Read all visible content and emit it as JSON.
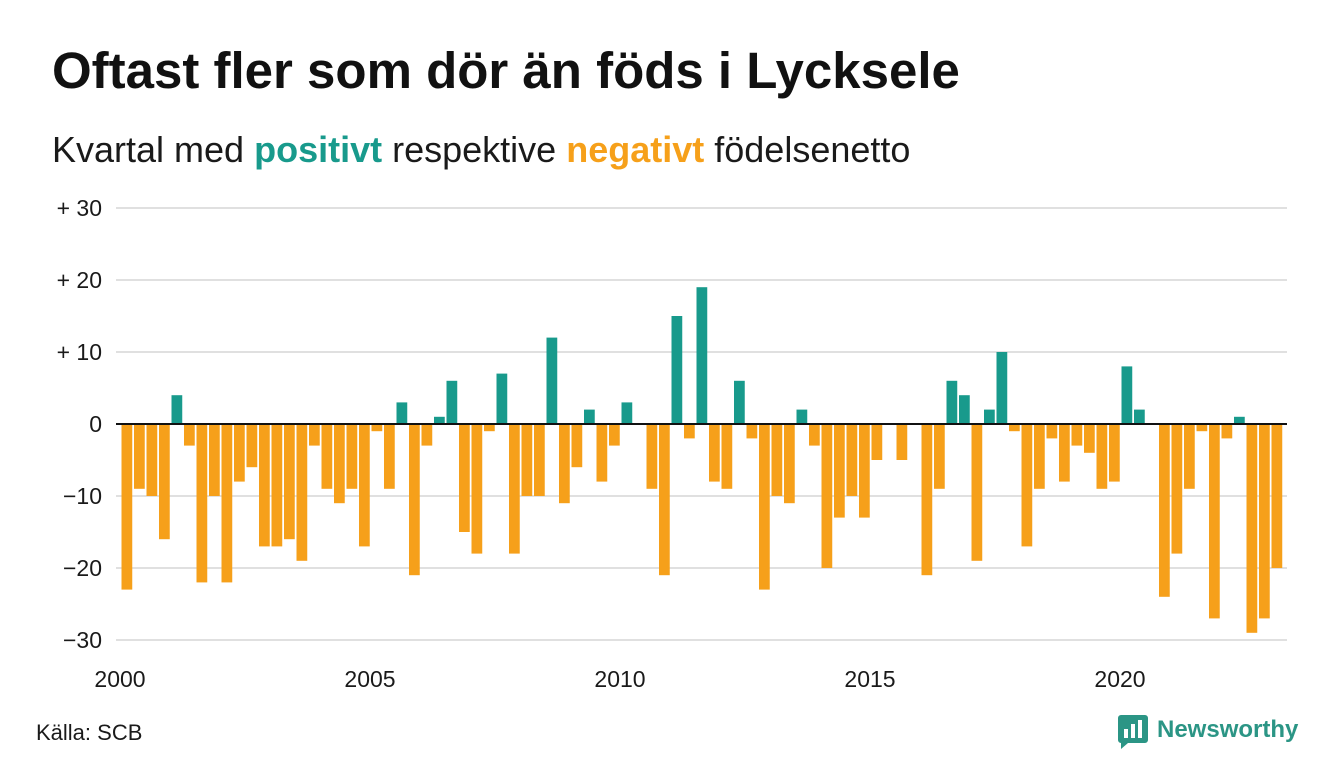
{
  "chart_data": {
    "type": "bar",
    "title": "Oftast fler som dör än föds i Lycksele",
    "subtitle": {
      "lead": "Kvartal med",
      "positive": "positivt",
      "middle": "respektive",
      "negative": "negativt",
      "tail": "födelsenetto"
    },
    "xlabel": "",
    "ylabel": "",
    "x": [
      2000,
      2000.25,
      2000.5,
      2000.75,
      2001,
      2001.25,
      2001.5,
      2001.75,
      2002,
      2002.25,
      2002.5,
      2002.75,
      2003,
      2003.25,
      2003.5,
      2003.75,
      2004,
      2004.25,
      2004.5,
      2004.75,
      2005,
      2005.25,
      2005.5,
      2005.75,
      2006,
      2006.25,
      2006.5,
      2006.75,
      2007,
      2007.25,
      2007.5,
      2007.75,
      2008,
      2008.25,
      2008.5,
      2008.75,
      2009,
      2009.25,
      2009.5,
      2009.75,
      2010,
      2010.25,
      2010.5,
      2010.75,
      2011,
      2011.25,
      2011.5,
      2011.75,
      2012,
      2012.25,
      2012.5,
      2012.75,
      2013,
      2013.25,
      2013.5,
      2013.75,
      2014,
      2014.25,
      2014.5,
      2014.75,
      2015,
      2015.25,
      2015.5,
      2015.75,
      2016,
      2016.25,
      2016.5,
      2016.75,
      2017,
      2017.25,
      2017.5,
      2017.75,
      2018,
      2018.25,
      2018.5,
      2018.75,
      2019,
      2019.25,
      2019.5,
      2019.75,
      2020,
      2020.25,
      2020.5,
      2020.75,
      2021,
      2021.25,
      2021.5,
      2021.75,
      2022,
      2022.25,
      2022.5,
      2022.75,
      2023
    ],
    "values": [
      -23,
      -9,
      -10,
      -16,
      4,
      -3,
      -22,
      -10,
      -22,
      -8,
      -6,
      -17,
      -17,
      -16,
      -19,
      -3,
      -9,
      -11,
      -9,
      -17,
      -1,
      -9,
      3,
      -21,
      -3,
      1,
      6,
      -15,
      -18,
      -1,
      7,
      -18,
      -10,
      -10,
      12,
      -11,
      -6,
      2,
      -8,
      -3,
      3,
      0,
      -9,
      -21,
      15,
      -2,
      19,
      -8,
      -9,
      6,
      -2,
      -23,
      -10,
      -11,
      2,
      -3,
      -20,
      -13,
      -10,
      -13,
      -5,
      0,
      -5,
      0,
      -21,
      -9,
      6,
      4,
      -19,
      2,
      10,
      -1,
      -17,
      -9,
      -2,
      -8,
      -3,
      -4,
      -9,
      -8,
      8,
      2,
      0,
      -24,
      -18,
      -9,
      -1,
      -27,
      -2,
      1,
      -29,
      -27,
      -20
    ],
    "xlim": [
      2000,
      2023.25
    ],
    "ylim": [
      -30,
      30
    ],
    "x_ticks": [
      {
        "value": 2000,
        "label": "2000"
      },
      {
        "value": 2005,
        "label": "2005"
      },
      {
        "value": 2010,
        "label": "2010"
      },
      {
        "value": 2015,
        "label": "2015"
      },
      {
        "value": 2020,
        "label": "2020"
      }
    ],
    "y_ticks": [
      {
        "value": 30,
        "label": "+ 30"
      },
      {
        "value": 20,
        "label": "+ 20"
      },
      {
        "value": 10,
        "label": "+ 10"
      },
      {
        "value": 0,
        "label": "0"
      },
      {
        "value": -10,
        "label": "−10"
      },
      {
        "value": -20,
        "label": "−20"
      },
      {
        "value": -30,
        "label": "−30"
      }
    ],
    "grid": true,
    "colors": {
      "positive": "#189a8c",
      "negative": "#f6a01a",
      "zero_line": "#111111",
      "grid": "#e0e0e0"
    }
  },
  "source": "Källa: SCB",
  "brand": {
    "name": "Newsworthy",
    "color": "#2b9585",
    "icon": "newsworthy-chart-bubble-icon"
  }
}
